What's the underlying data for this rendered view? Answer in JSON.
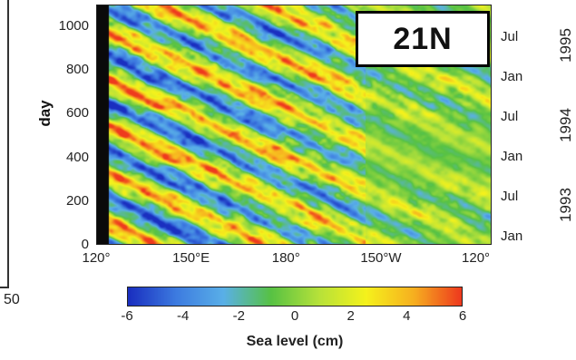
{
  "chart_data": {
    "type": "heatmap",
    "title": "",
    "annotation": "21N",
    "xlabel": "",
    "ylabel": "day",
    "x_ticks": [
      "120°",
      "150°E",
      "180°",
      "150°W",
      "120°"
    ],
    "x_range_deg_east": [
      120,
      245
    ],
    "y_ticks": [
      "0",
      "200",
      "400",
      "600",
      "800",
      "1000"
    ],
    "ylim": [
      0,
      1100
    ],
    "time_ticks_right": [
      {
        "day": 0,
        "label": "Jan"
      },
      {
        "day": 182,
        "label": "Jul"
      },
      {
        "day": 365,
        "label": "Jan"
      },
      {
        "day": 547,
        "label": "Jul"
      },
      {
        "day": 730,
        "label": "Jan"
      },
      {
        "day": 912,
        "label": "Jul"
      }
    ],
    "years": [
      {
        "day_center": 182,
        "label": "1993"
      },
      {
        "day_center": 547,
        "label": "1994"
      },
      {
        "day_center": 912,
        "label": "1995"
      }
    ],
    "colorbar": {
      "label": "Sea level (cm)",
      "min": -6,
      "max": 6,
      "ticks": [
        "-6",
        "-4",
        "-2",
        "0",
        "2",
        "4",
        "6"
      ],
      "colors": [
        "#1a2fc0",
        "#3d7be0",
        "#5ab0e8",
        "#57c244",
        "#b7e23a",
        "#f5f21c",
        "#f7b020",
        "#ee3a1e"
      ]
    },
    "pattern": "westward-propagating sea level anomaly bands (Rossby waves); left-most strip has no data",
    "wave_bands": [
      {
        "sign": "positive",
        "start_lon": 245,
        "start_day": 0,
        "amp": 5
      },
      {
        "sign": "negative",
        "start_lon": 245,
        "start_day": 110,
        "amp": -5
      },
      {
        "sign": "positive",
        "start_lon": 245,
        "start_day": 220,
        "amp": 5
      },
      {
        "sign": "negative",
        "start_lon": 245,
        "start_day": 330,
        "amp": -5
      },
      {
        "sign": "positive",
        "start_lon": 245,
        "start_day": 440,
        "amp": 4
      },
      {
        "sign": "negative",
        "start_lon": 245,
        "start_day": 550,
        "amp": -4
      },
      {
        "sign": "positive",
        "start_lon": 245,
        "start_day": 660,
        "amp": 3
      }
    ],
    "wave_slope_deg_per_day": -0.16
  },
  "fragment": {
    "left_label": "50"
  },
  "colors": {
    "no_data": "#0a0a0a",
    "box_border": "#000000"
  }
}
